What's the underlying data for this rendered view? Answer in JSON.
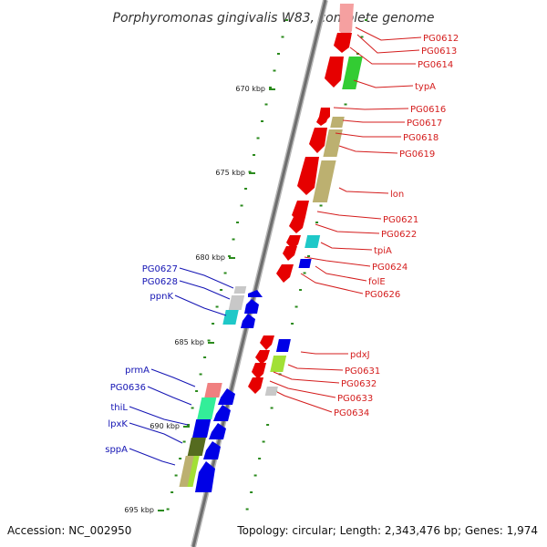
{
  "header": {
    "title": "Porphyromonas gingivalis W83, complete genome"
  },
  "footer": {
    "accession": "Accession: NC_002950",
    "topology": "Topology: circular; Length: 2,343,476 bp; Genes: 1,974"
  },
  "colors": {
    "forward_label": "#d41c1c",
    "reverse_label": "#1414b4",
    "tick": "#2a8a1c",
    "backbone": "#8c8c8c"
  },
  "ruler": [
    {
      "label": "670 kbp",
      "kbp": 670
    },
    {
      "label": "675 kbp",
      "kbp": 675
    },
    {
      "label": "680 kbp",
      "kbp": 680
    },
    {
      "label": "685 kbp",
      "kbp": 685
    },
    {
      "label": "690 kbp",
      "kbp": 690
    },
    {
      "label": "695 kbp",
      "kbp": 695
    }
  ],
  "forward_labels": [
    {
      "id": "fl-0",
      "text": "PG0612"
    },
    {
      "id": "fl-1",
      "text": "PG0613"
    },
    {
      "id": "fl-2",
      "text": "PG0614"
    },
    {
      "id": "fl-3",
      "text": "typA"
    },
    {
      "id": "fl-4",
      "text": "PG0616"
    },
    {
      "id": "fl-5",
      "text": "PG0617"
    },
    {
      "id": "fl-6",
      "text": "PG0618"
    },
    {
      "id": "fl-7",
      "text": "PG0619"
    },
    {
      "id": "fl-8",
      "text": "lon"
    },
    {
      "id": "fl-9",
      "text": "PG0621"
    },
    {
      "id": "fl-10",
      "text": "PG0622"
    },
    {
      "id": "fl-11",
      "text": "tpiA"
    },
    {
      "id": "fl-12",
      "text": "PG0624"
    },
    {
      "id": "fl-13",
      "text": "folE"
    },
    {
      "id": "fl-14",
      "text": "PG0626"
    },
    {
      "id": "fl-15",
      "text": "pdxJ"
    },
    {
      "id": "fl-16",
      "text": "PG0631"
    },
    {
      "id": "fl-17",
      "text": "PG0632"
    },
    {
      "id": "fl-18",
      "text": "PG0633"
    },
    {
      "id": "fl-19",
      "text": "PG0634"
    }
  ],
  "reverse_labels": [
    {
      "id": "rl-0",
      "text": "PG0627"
    },
    {
      "id": "rl-1",
      "text": "PG0628"
    },
    {
      "id": "rl-2",
      "text": "ppnK"
    },
    {
      "id": "rl-3",
      "text": "prmA"
    },
    {
      "id": "rl-4",
      "text": "PG0636"
    },
    {
      "id": "rl-5",
      "text": "thiL"
    },
    {
      "id": "rl-6",
      "text": "lpxK"
    },
    {
      "id": "rl-7",
      "text": "sppA"
    }
  ]
}
